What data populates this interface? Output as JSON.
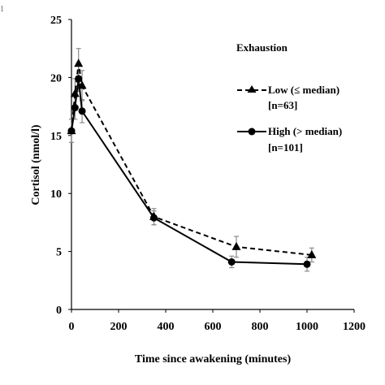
{
  "corner_label": "1",
  "chart_data": {
    "type": "line",
    "xlabel": "Time since awakening (minutes)",
    "ylabel": "Cortisol (nmol/l)",
    "xlim": [
      0,
      1200
    ],
    "ylim": [
      0,
      25
    ],
    "xticks": [
      0,
      200,
      400,
      600,
      800,
      1000,
      1200
    ],
    "yticks": [
      0,
      5,
      10,
      15,
      20,
      25
    ],
    "grid": false,
    "legend": {
      "title": "Exhaustion",
      "placement": "top-right"
    },
    "series": [
      {
        "name": "Low (≤ median)",
        "n_label": "[n=63]",
        "marker": "triangle",
        "line_style": "dashed",
        "x": [
          0,
          15,
          30,
          45,
          350,
          700,
          1020
        ],
        "y": [
          15.4,
          18.6,
          21.2,
          19.3,
          8.0,
          5.4,
          4.7
        ],
        "err": [
          1.0,
          1.3,
          1.3,
          1.3,
          0.7,
          0.9,
          0.6
        ]
      },
      {
        "name": "High (> median)",
        "n_label": "[n=101]",
        "marker": "circle",
        "line_style": "solid",
        "x": [
          0,
          15,
          30,
          45,
          350,
          680,
          1000
        ],
        "y": [
          15.4,
          17.4,
          19.9,
          17.1,
          7.9,
          4.1,
          3.9
        ],
        "err": [
          1.0,
          1.0,
          1.1,
          1.0,
          0.6,
          0.5,
          0.6
        ]
      }
    ]
  }
}
